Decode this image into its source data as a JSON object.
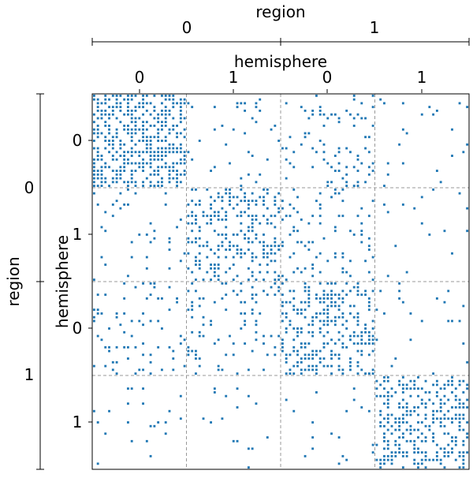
{
  "chart_data": {
    "type": "scatter",
    "title": "",
    "matrix_size": 100,
    "top_outer_label": "region",
    "top_inner_label": "hemisphere",
    "left_outer_label": "region",
    "left_inner_label": "hemisphere",
    "region_ticks": [
      "0",
      "1"
    ],
    "hemisphere_ticks": [
      "0",
      "1",
      "0",
      "1"
    ],
    "block_density": [
      [
        0.55,
        0.06,
        0.12,
        0.03
      ],
      [
        0.06,
        0.35,
        0.15,
        0.03
      ],
      [
        0.12,
        0.15,
        0.4,
        0.03
      ],
      [
        0.03,
        0.03,
        0.03,
        0.45
      ]
    ],
    "marker_color": "#1f77b4",
    "block_divider_color": "#999999",
    "grid": false,
    "legend": "none"
  }
}
